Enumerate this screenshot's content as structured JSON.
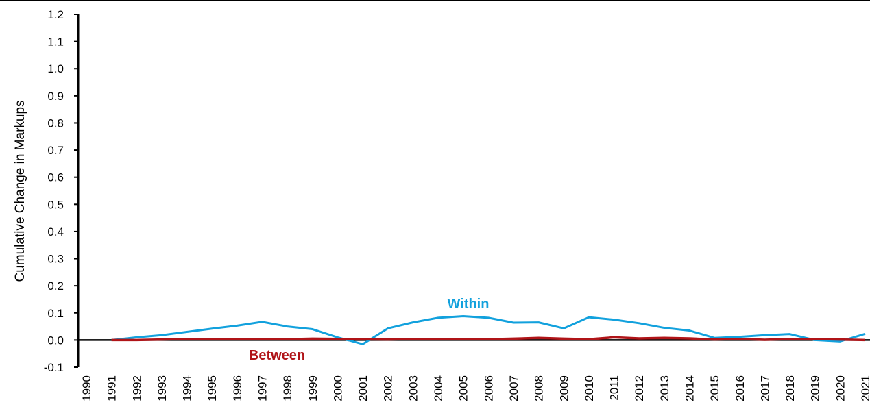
{
  "chart_data": {
    "type": "line",
    "title": "",
    "ylabel": "Cumulative Change in Markups",
    "xlabel": "",
    "ylim": [
      -0.1,
      1.2
    ],
    "ytick_step": 0.1,
    "y_tick_labels": [
      "-0.1",
      "0.0",
      "0.1",
      "0.2",
      "0.3",
      "0.4",
      "0.5",
      "0.6",
      "0.7",
      "0.8",
      "0.9",
      "1.0",
      "1.1",
      "1.2"
    ],
    "x": [
      "1990",
      "1991",
      "1992",
      "1993",
      "1994",
      "1995",
      "1996",
      "1997",
      "1998",
      "1999",
      "2000",
      "2001",
      "2002",
      "2003",
      "2004",
      "2005",
      "2006",
      "2007",
      "2008",
      "2009",
      "2010",
      "2011",
      "2012",
      "2013",
      "2014",
      "2015",
      "2016",
      "2017",
      "2018",
      "2019",
      "2020",
      "2021"
    ],
    "series": [
      {
        "name": "Within",
        "color": "#12a1dd",
        "values": [
          null,
          0.0,
          0.01,
          0.018,
          0.03,
          0.042,
          0.053,
          0.067,
          0.05,
          0.04,
          0.01,
          -0.015,
          0.043,
          0.065,
          0.082,
          0.088,
          0.082,
          0.064,
          0.065,
          0.043,
          0.084,
          0.075,
          0.062,
          0.045,
          0.035,
          0.008,
          0.012,
          0.018,
          0.022,
          0.0,
          -0.005,
          0.023
        ]
      },
      {
        "name": "Between",
        "color": "#b01418",
        "values": [
          null,
          0.0,
          0.0,
          0.002,
          0.004,
          0.003,
          0.003,
          0.004,
          0.003,
          0.005,
          0.004,
          0.003,
          0.002,
          0.004,
          0.003,
          0.003,
          0.003,
          0.005,
          0.008,
          0.005,
          0.003,
          0.01,
          0.006,
          0.008,
          0.006,
          0.002,
          0.004,
          0.001,
          0.004,
          0.004,
          0.002,
          0.0
        ]
      }
    ],
    "grid": false,
    "legend": "none",
    "annotations": [
      "Within",
      "Between"
    ]
  }
}
